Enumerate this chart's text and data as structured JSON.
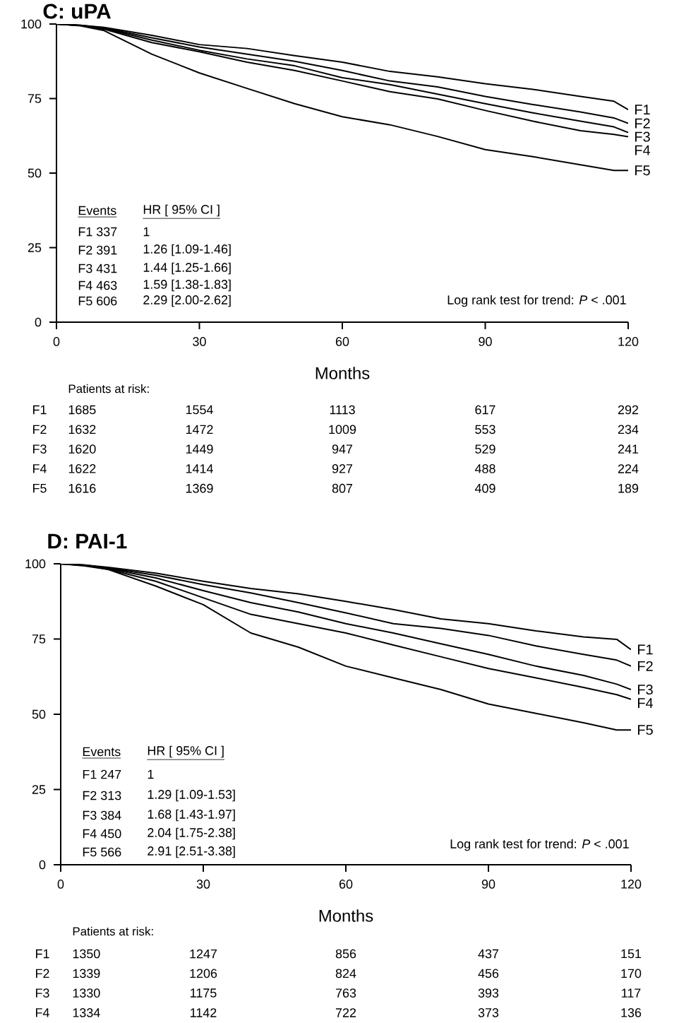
{
  "chart_data": [
    {
      "type": "line",
      "title": "C: uPA",
      "xlabel": "Months",
      "xlim": [
        0,
        120
      ],
      "xticks": [
        0,
        30,
        60,
        90,
        120
      ],
      "ylim": [
        0,
        100
      ],
      "yticks": [
        0,
        25,
        50,
        75,
        100
      ],
      "x": [
        0,
        5,
        10,
        20,
        30,
        40,
        50,
        60,
        70,
        80,
        90,
        100,
        110,
        117,
        120
      ],
      "series": [
        {
          "name": "F1",
          "color": "#000000",
          "values": [
            100,
            99.6,
            98.9,
            96.2,
            93.1,
            91.8,
            89.4,
            87.2,
            84.1,
            82.3,
            80.0,
            78.1,
            75.7,
            74.1,
            71.3
          ]
        },
        {
          "name": "F2",
          "color": "#000000",
          "values": [
            100,
            99.6,
            98.7,
            95.4,
            92.3,
            89.9,
            87.5,
            84.4,
            80.9,
            78.9,
            75.7,
            73.0,
            70.5,
            68.5,
            66.7
          ]
        },
        {
          "name": "F3",
          "color": "#000000",
          "values": [
            100,
            99.5,
            98.5,
            94.6,
            91.2,
            88.3,
            86.0,
            82.0,
            79.7,
            76.5,
            73.3,
            70.2,
            67.4,
            65.5,
            63.6
          ]
        },
        {
          "name": "F4",
          "color": "#000000",
          "values": [
            100,
            99.5,
            98.3,
            93.8,
            90.7,
            87.2,
            84.4,
            80.9,
            77.3,
            74.9,
            71.0,
            67.4,
            64.2,
            63.0,
            62.2
          ]
        },
        {
          "name": "F5",
          "color": "#000000",
          "values": [
            100,
            99.4,
            97.8,
            89.9,
            83.6,
            78.4,
            73.3,
            68.9,
            66.2,
            62.3,
            57.9,
            55.5,
            52.8,
            50.9,
            50.9
          ]
        }
      ],
      "annotations": [
        "Events",
        "HR [ 95% CI ]",
        "F1 337",
        "F2 391",
        "F3 431",
        "F4 463",
        "F5 606",
        "1",
        "1.26 [1.09-1.46]",
        "1.44 [1.25-1.66]",
        "1.59 [1.38-1.83]",
        "2.29 [2.00-2.62]",
        "Log rank test for trend: *P* < .001",
        "Patients at risk:",
        "F1",
        "1685",
        "1554",
        "1113",
        "617",
        "292",
        "F2",
        "1632",
        "1472",
        "1009",
        "553",
        "234",
        "F3",
        "1620",
        "1449",
        "947",
        "529",
        "241",
        "F4",
        "1622",
        "1414",
        "927",
        "488",
        "224",
        "F5",
        "1616",
        "1369",
        "807",
        "409",
        "189"
      ]
    },
    {
      "type": "line",
      "title": "D: PAI-1",
      "xlabel": "Months",
      "xlim": [
        0,
        120
      ],
      "xticks": [
        0,
        30,
        60,
        90,
        120
      ],
      "ylim": [
        0,
        100
      ],
      "yticks": [
        0,
        25,
        50,
        75,
        100
      ],
      "x": [
        0,
        5,
        10,
        20,
        30,
        40,
        50,
        60,
        70,
        80,
        90,
        100,
        110,
        117,
        120
      ],
      "series": [
        {
          "name": "F1",
          "color": "#000000",
          "values": [
            100,
            99.6,
            98.8,
            96.9,
            94.2,
            91.8,
            90.0,
            87.5,
            84.8,
            81.7,
            80.1,
            77.7,
            75.7,
            74.9,
            71.5
          ]
        },
        {
          "name": "F2",
          "color": "#000000",
          "values": [
            100,
            99.6,
            98.6,
            96.2,
            93.1,
            90.3,
            87.1,
            83.7,
            80.1,
            78.5,
            76.2,
            72.7,
            69.9,
            68.0,
            66.0
          ]
        },
        {
          "name": "F3",
          "color": "#000000",
          "values": [
            100,
            99.5,
            98.4,
            95.3,
            91.1,
            87.1,
            84.0,
            80.1,
            77.0,
            73.4,
            69.9,
            66.0,
            62.9,
            60.0,
            58.2
          ]
        },
        {
          "name": "F4",
          "color": "#000000",
          "values": [
            100,
            99.5,
            98.2,
            94.2,
            88.7,
            83.2,
            80.1,
            77.0,
            73.0,
            69.1,
            65.2,
            62.1,
            58.9,
            56.5,
            55.0
          ]
        },
        {
          "name": "F5",
          "color": "#000000",
          "values": [
            100,
            99.3,
            98.1,
            92.6,
            86.4,
            77.0,
            72.3,
            66.0,
            62.1,
            58.2,
            53.4,
            50.3,
            47.2,
            44.8,
            44.8
          ]
        }
      ],
      "annotations": [
        "Events",
        "HR [ 95% CI ]",
        "F1 247",
        "F2 313",
        "F3 384",
        "F4 450",
        "F5 566",
        "1",
        "1.29 [1.09-1.53]",
        "1.68 [1.43-1.97]",
        "2.04 [1.75-2.38]",
        "2.91 [2.51-3.38]",
        "Log rank test for trend: *P* < .001",
        "Patients at risk:",
        "F1",
        "1350",
        "1247",
        "856",
        "437",
        "151",
        "F2",
        "1339",
        "1206",
        "824",
        "456",
        "170",
        "F3",
        "1330",
        "1175",
        "763",
        "393",
        "117",
        "F4",
        "1334",
        "1142",
        "722",
        "373",
        "136"
      ]
    }
  ]
}
